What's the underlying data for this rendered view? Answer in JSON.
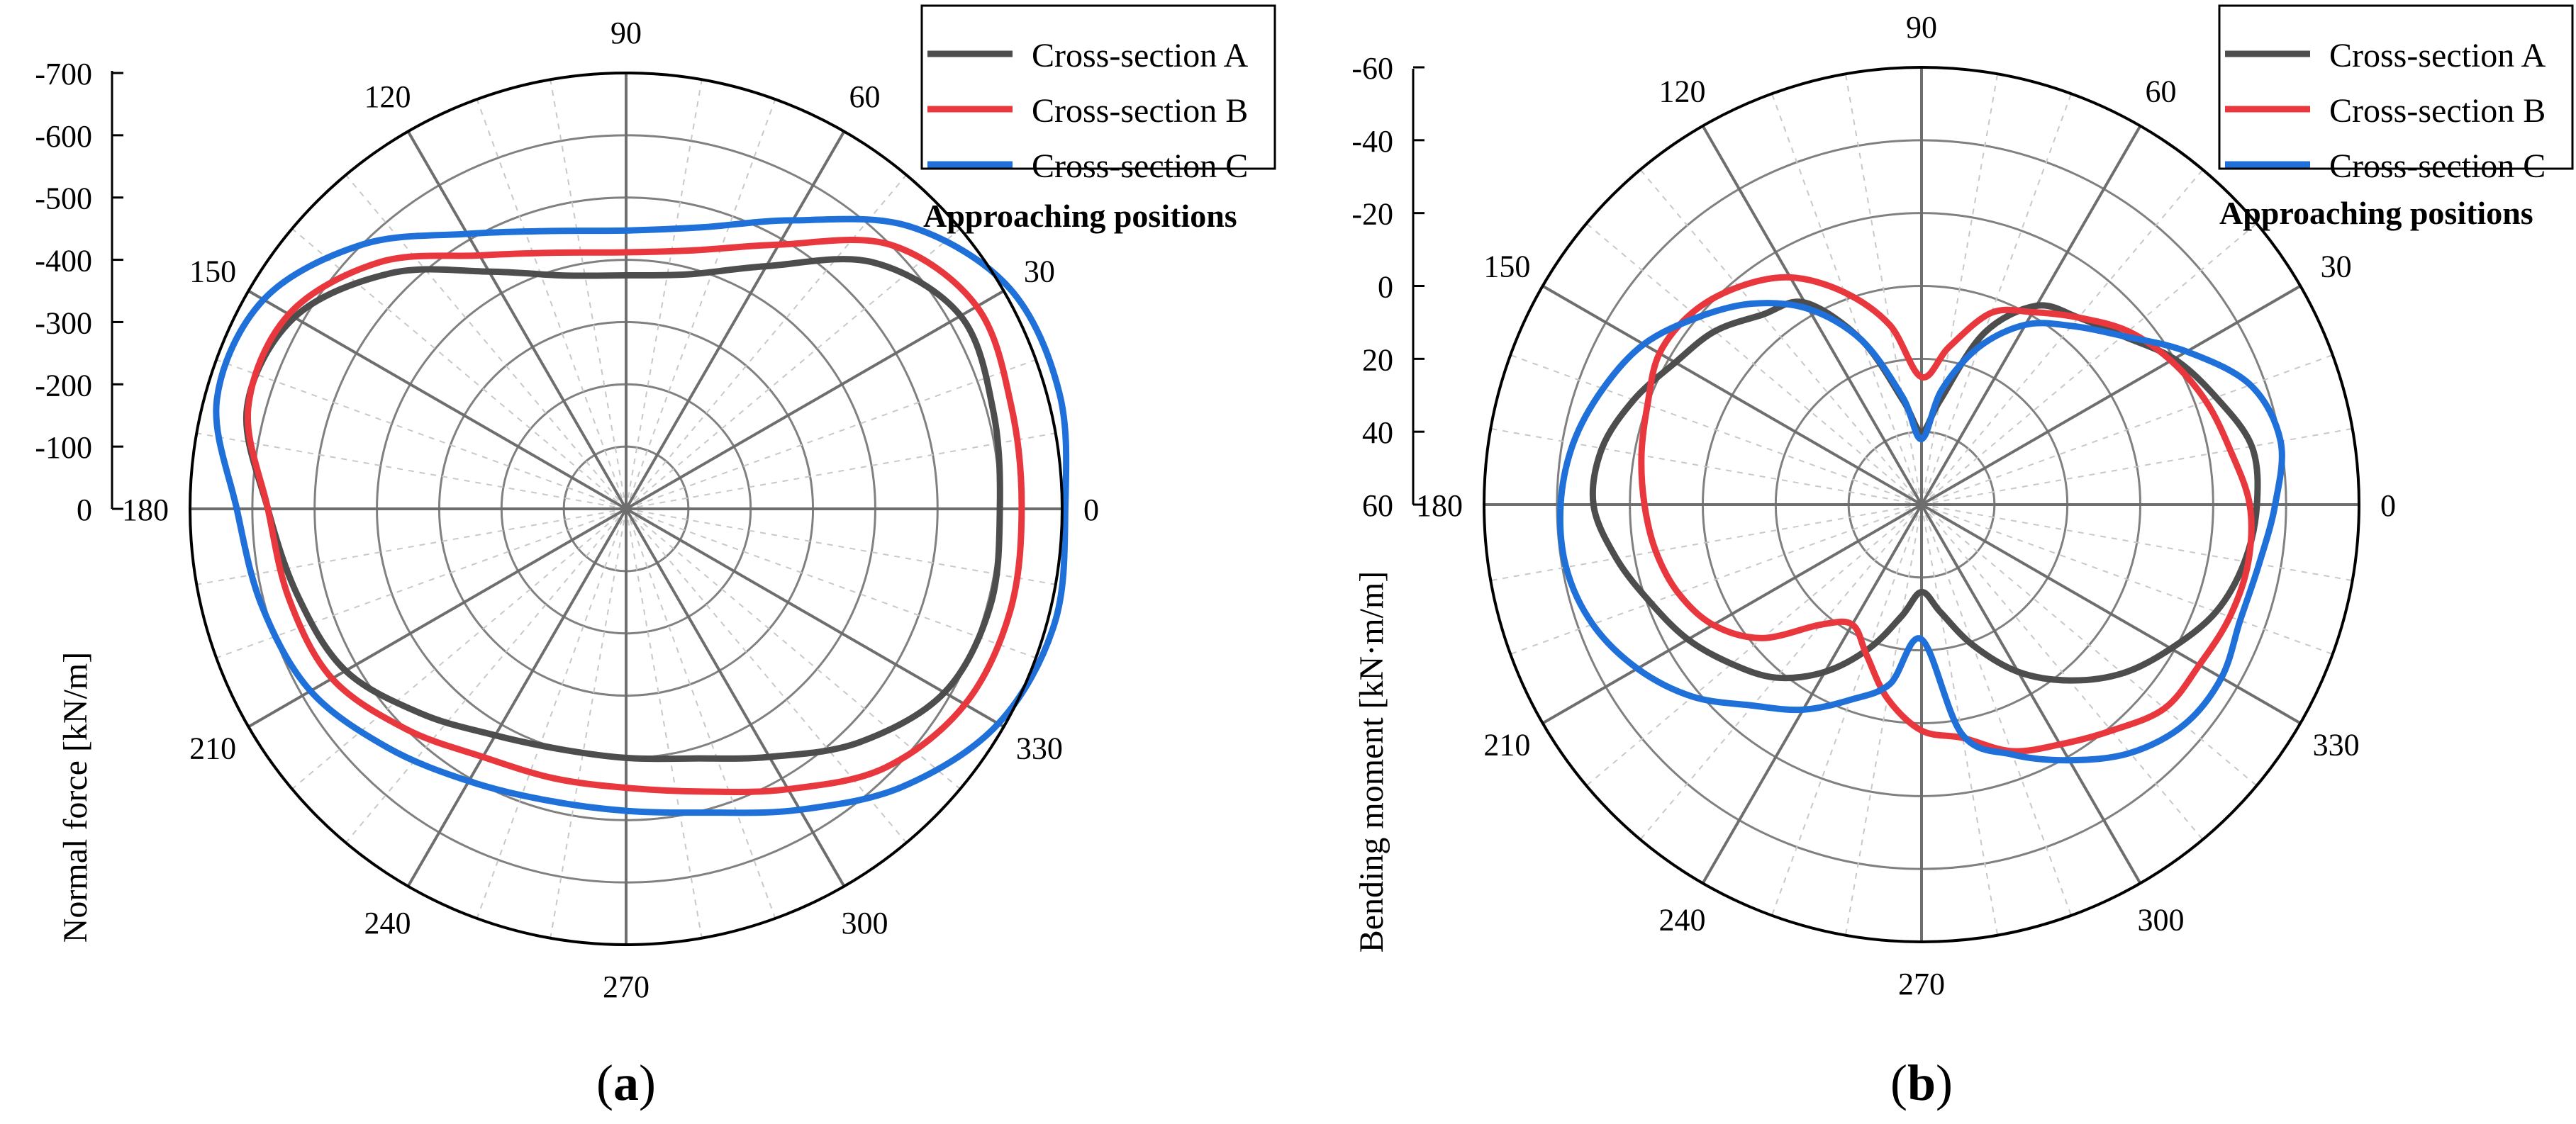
{
  "chart_data": [
    {
      "panel": "a",
      "panel_label": "(a)",
      "type": "polar-line",
      "ylabel": "Normal force [kN/m]",
      "radial_ticks": [
        "-700",
        "-600",
        "-500",
        "-400",
        "-300",
        "-200",
        "-100",
        "0"
      ],
      "radial_range": [
        0,
        -700
      ],
      "angle_ticks": [
        "0",
        "30",
        "60",
        "90",
        "120",
        "150",
        "180",
        "210",
        "240",
        "270",
        "300",
        "330"
      ],
      "legend_title": "Approaching positions",
      "legend_position": "top-right",
      "series": [
        {
          "name": "Cross-section A",
          "color": "#4d4d4d",
          "angles": [
            0,
            15,
            30,
            45,
            60,
            75,
            90,
            105,
            120,
            135,
            150,
            165,
            180,
            195,
            210,
            225,
            240,
            255,
            270,
            285,
            300,
            315,
            330,
            345,
            360
          ],
          "values": [
            -600,
            -610,
            -620,
            -560,
            -450,
            -390,
            -375,
            -388,
            -440,
            -535,
            -615,
            -630,
            -575,
            -545,
            -520,
            -465,
            -420,
            -400,
            -400,
            -415,
            -460,
            -530,
            -590,
            -605,
            -600
          ]
        },
        {
          "name": "Cross-section B",
          "color": "#e8383d",
          "angles": [
            0,
            15,
            30,
            45,
            60,
            75,
            90,
            105,
            120,
            135,
            150,
            165,
            180,
            195,
            210,
            225,
            240,
            255,
            270,
            285,
            300,
            315,
            330,
            345,
            360
          ],
          "values": [
            -635,
            -640,
            -650,
            -600,
            -490,
            -430,
            -412,
            -426,
            -470,
            -560,
            -625,
            -628,
            -575,
            -560,
            -545,
            -500,
            -460,
            -448,
            -448,
            -470,
            -520,
            -588,
            -628,
            -638,
            -635
          ]
        },
        {
          "name": "Cross-section C",
          "color": "#1f70d8",
          "angles": [
            0,
            15,
            30,
            45,
            60,
            75,
            90,
            105,
            120,
            135,
            150,
            165,
            180,
            195,
            210,
            225,
            240,
            255,
            270,
            285,
            300,
            315,
            330,
            345,
            360
          ],
          "values": [
            -705,
            -720,
            -710,
            -642,
            -535,
            -468,
            -447,
            -462,
            -510,
            -600,
            -672,
            -680,
            -625,
            -605,
            -585,
            -542,
            -505,
            -485,
            -485,
            -505,
            -558,
            -630,
            -690,
            -712,
            -705
          ]
        }
      ]
    },
    {
      "panel": "b",
      "panel_label": "(b)",
      "type": "polar-line",
      "ylabel": "Bending moment [kN·m/m]",
      "radial_ticks": [
        "-60",
        "-40",
        "-20",
        "0",
        "20",
        "40",
        "60"
      ],
      "radial_range": [
        60,
        -60
      ],
      "angle_ticks": [
        "0",
        "30",
        "60",
        "90",
        "120",
        "150",
        "180",
        "210",
        "240",
        "270",
        "300",
        "330"
      ],
      "legend_title": "Approaching positions",
      "legend_position": "top-right",
      "series": [
        {
          "name": "Cross-section A",
          "color": "#4d4d4d",
          "angles": [
            0,
            10,
            20,
            30,
            40,
            50,
            60,
            70,
            80,
            90,
            100,
            110,
            120,
            130,
            140,
            150,
            160,
            170,
            180,
            190,
            200,
            210,
            220,
            230,
            240,
            250,
            260,
            270,
            280,
            290,
            300,
            310,
            320,
            330,
            340,
            350,
            360
          ],
          "values": [
            -32,
            -32,
            -26,
            -20,
            -12,
            -7,
            -3,
            10,
            31,
            40,
            31,
            12,
            -4,
            -8,
            -14,
            -18,
            -24,
            -29,
            -30,
            -25,
            -19,
            -14,
            -8,
            -2,
            7,
            18,
            29,
            36,
            30,
            19,
            7,
            -3,
            -12,
            -19,
            -26,
            -30,
            -32
          ]
        },
        {
          "name": "Cross-section B",
          "color": "#e8383d",
          "angles": [
            0,
            10,
            20,
            30,
            40,
            50,
            60,
            70,
            80,
            90,
            100,
            110,
            120,
            130,
            140,
            150,
            160,
            170,
            180,
            190,
            200,
            210,
            220,
            230,
            240,
            250,
            260,
            270,
            280,
            290,
            300,
            310,
            320,
            330,
            340,
            350,
            360
          ],
          "values": [
            -30,
            -26,
            -23,
            -19,
            -14,
            -7,
            -1,
            4,
            16,
            25,
            10,
            -2,
            -12,
            -18,
            -22,
            -23,
            -20,
            -18,
            -16,
            -14,
            -11,
            -6,
            3,
            17,
            22,
            16,
            6,
            -2,
            -5,
            -12,
            -16,
            -21,
            -27,
            -28,
            -30,
            -31,
            -30
          ]
        },
        {
          "name": "Cross-section C",
          "color": "#1f70d8",
          "angles": [
            0,
            10,
            20,
            30,
            40,
            50,
            60,
            70,
            80,
            90,
            100,
            110,
            120,
            130,
            140,
            150,
            160,
            170,
            180,
            190,
            200,
            210,
            220,
            230,
            240,
            250,
            260,
            270,
            280,
            290,
            300,
            310,
            320,
            330,
            340,
            350,
            360
          ],
          "values": [
            -37,
            -40,
            -36,
            -24,
            -12,
            -4,
            3,
            14,
            28,
            42,
            30,
            12,
            -2,
            -12,
            -20,
            -28,
            -33,
            -37,
            -39,
            -39,
            -36,
            -30,
            -22,
            -12,
            -5,
            3,
            10,
            23,
            -4,
            -13,
            -21,
            -29,
            -34,
            -35,
            -33,
            -34,
            -37
          ]
        }
      ]
    }
  ]
}
